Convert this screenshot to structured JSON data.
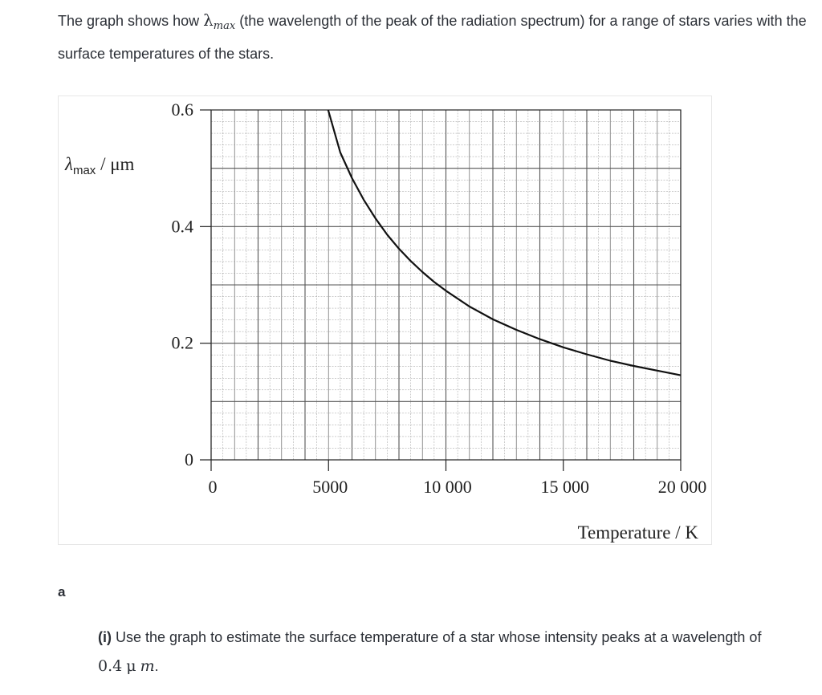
{
  "question": {
    "intro_part1": "The graph shows how ",
    "lambda_symbol": "λ",
    "lambda_subscript": "max",
    "intro_part2": " (the wavelength of the peak of the radiation spectrum) for a range of stars varies with the surface temperatures of the stars.",
    "part_label": "a",
    "sub_label": "(i)",
    "sub_text": " Use the graph to estimate the surface temperature of a star whose intensity peaks at a wavelength of ",
    "value": "0.4",
    "unit_mu": "μ",
    "unit_m": "m",
    "end": "."
  },
  "chart_data": {
    "type": "line",
    "ylabel_symbol": "λ",
    "ylabel_subscript": "max",
    "ylabel_unit": " / μm",
    "xlabel": "Temperature / K",
    "xlim": [
      0,
      20000
    ],
    "ylim": [
      0,
      0.6
    ],
    "x_ticks": [
      {
        "value": 0,
        "label": "0"
      },
      {
        "value": 5000,
        "label": "5000"
      },
      {
        "value": 10000,
        "label": "10 000"
      },
      {
        "value": 15000,
        "label": "15 000"
      },
      {
        "value": 20000,
        "label": "20 000"
      }
    ],
    "y_ticks": [
      {
        "value": 0,
        "label": "0"
      },
      {
        "value": 0.2,
        "label": "0.2"
      },
      {
        "value": 0.4,
        "label": "0.4"
      },
      {
        "value": 0.6,
        "label": "0.6"
      }
    ],
    "grid": true,
    "series": [
      {
        "x": [
          4983,
          5500,
          6000,
          6500,
          7000,
          7500,
          8000,
          8500,
          9000,
          9500,
          10000,
          11000,
          12000,
          13000,
          14000,
          15000,
          16000,
          17000,
          18000,
          19000,
          20000
        ],
        "y": [
          0.6,
          0.527,
          0.483,
          0.446,
          0.414,
          0.386,
          0.362,
          0.341,
          0.322,
          0.305,
          0.29,
          0.263,
          0.241,
          0.223,
          0.207,
          0.193,
          0.181,
          0.17,
          0.161,
          0.153,
          0.145
        ]
      }
    ]
  }
}
